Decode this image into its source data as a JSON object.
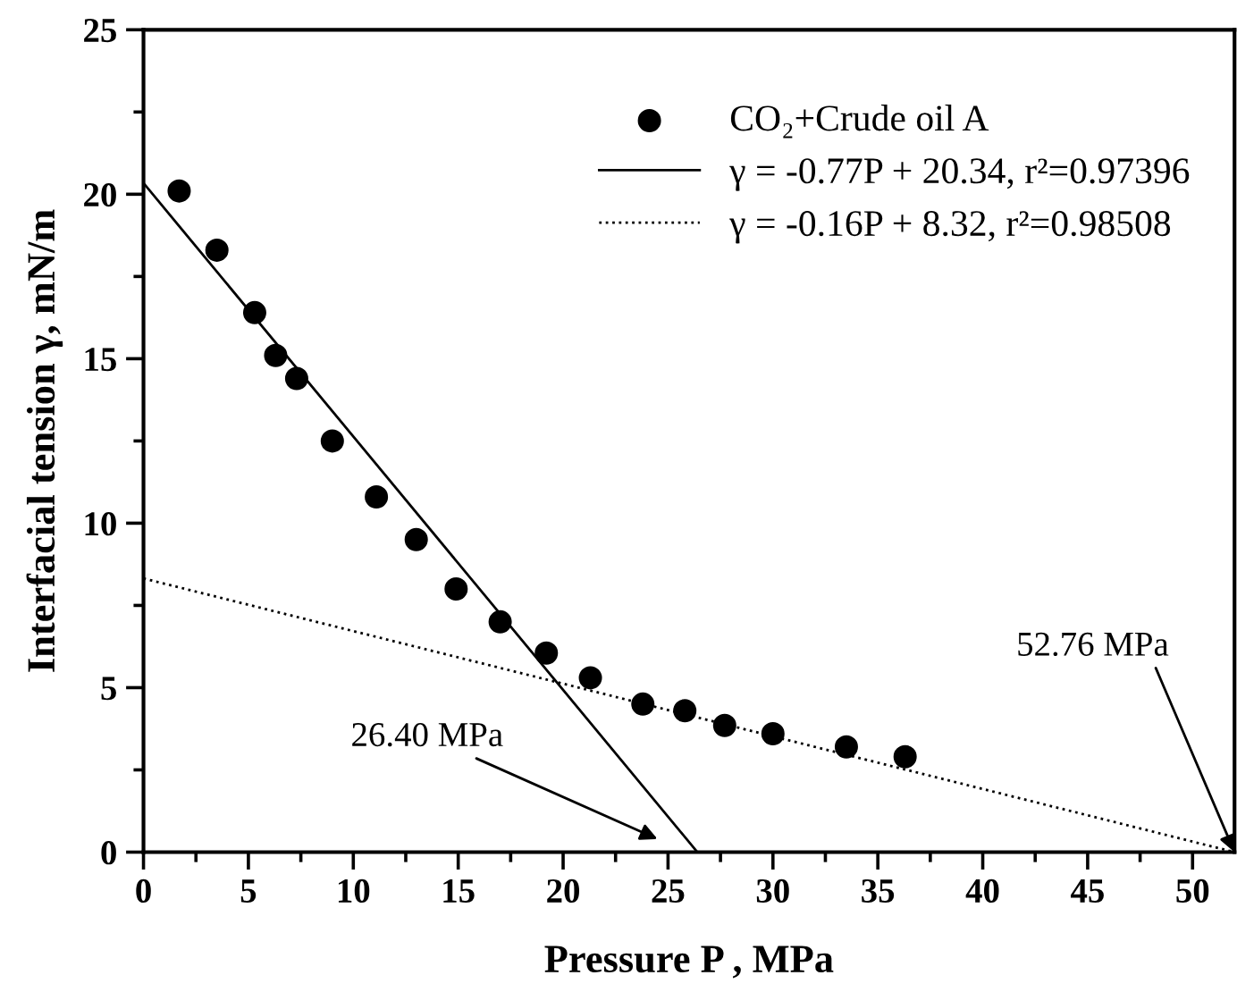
{
  "chart_data": {
    "type": "scatter",
    "xlabel": "Pressure P , MPa",
    "ylabel": "Interfacial tension γ, mN/m",
    "xlim": [
      0,
      52
    ],
    "ylim": [
      0,
      25
    ],
    "xticks": [
      0,
      {
        "value": 2.5,
        "label": null
      },
      5,
      {
        "value": 7.5,
        "label": null
      },
      10,
      {
        "value": 12.5,
        "label": null
      },
      15,
      {
        "value": 17.5,
        "label": null
      },
      20,
      {
        "value": 22.5,
        "label": null
      },
      25,
      {
        "value": 27.5,
        "label": null
      },
      30,
      {
        "value": 32.5,
        "label": null
      },
      35,
      {
        "value": 37.5,
        "label": null
      },
      40,
      {
        "value": 42.5,
        "label": null
      },
      45,
      {
        "value": 47.5,
        "label": null
      },
      50
    ],
    "yticks": [
      0,
      {
        "value": 2.5,
        "label": null
      },
      5,
      {
        "value": 7.5,
        "label": null
      },
      10,
      {
        "value": 12.5,
        "label": null
      },
      15,
      {
        "value": 17.5,
        "label": null
      },
      20,
      {
        "value": 22.5,
        "label": null
      },
      25
    ],
    "grid": false,
    "legend": "top right",
    "series": [
      {
        "name": "CO₂+Crude oil A",
        "color": "#000000",
        "marker": "circle",
        "x": [
          1.7,
          3.5,
          5.3,
          6.3,
          7.3,
          9.0,
          11.1,
          13.0,
          14.9,
          17.0,
          19.2,
          21.3,
          23.8,
          25.8,
          27.7,
          30.0,
          33.5,
          36.3
        ],
        "values": [
          20.1,
          18.3,
          16.4,
          15.1,
          14.4,
          12.5,
          10.8,
          9.5,
          8.0,
          7.0,
          6.05,
          5.3,
          4.5,
          4.3,
          3.85,
          3.6,
          3.2,
          2.9
        ]
      },
      {
        "name": "γ = -0.77P + 20.34, r²=0.97396",
        "type": "line",
        "color": "#000000",
        "line_style": "solid",
        "x": [
          0,
          26.4
        ],
        "values": [
          20.34,
          0
        ]
      },
      {
        "name": "γ = -0.16P + 8.32, r²=0.98508",
        "type": "line",
        "color": "#000000",
        "line_style": "dotted",
        "x": [
          0,
          52
        ],
        "values": [
          8.32,
          0
        ]
      }
    ],
    "annotations": [
      "26.40 MPa",
      {
        "text": "52.76 MPa",
        "x": 52,
        "y": 0
      }
    ]
  }
}
